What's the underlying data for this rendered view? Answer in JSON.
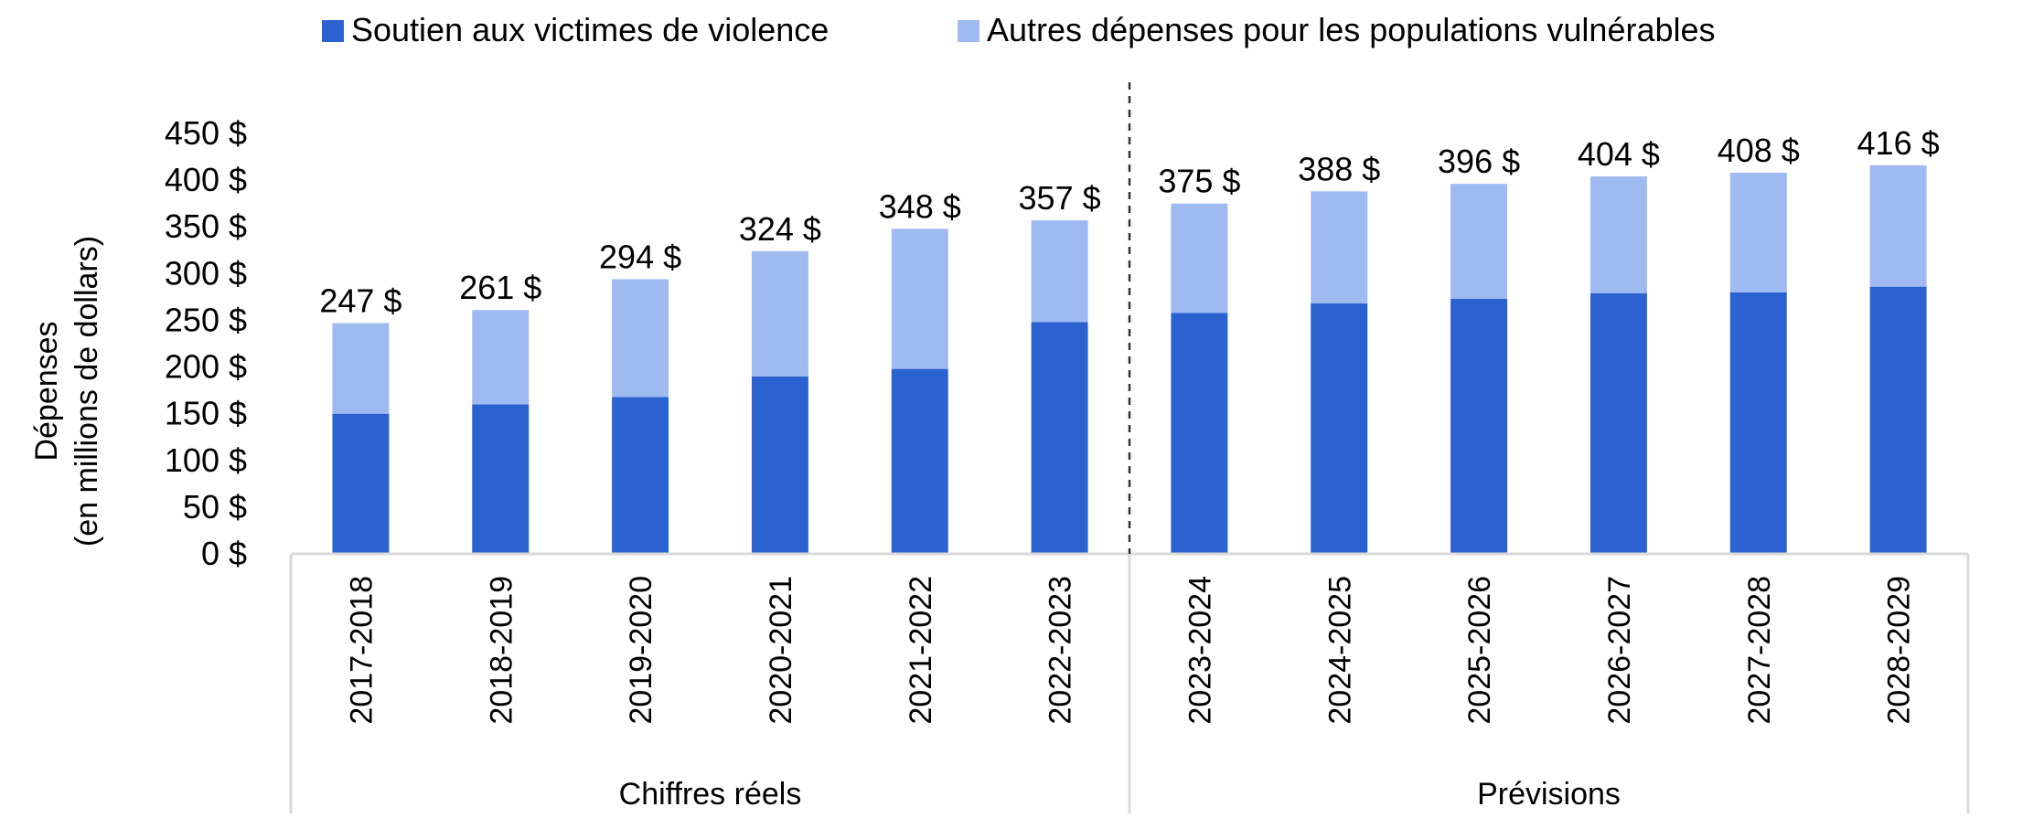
{
  "chart_data": {
    "type": "bar",
    "stacked": true,
    "categories": [
      "2017-2018",
      "2018-2019",
      "2019-2020",
      "2020-2021",
      "2021-2022",
      "2022-2023",
      "2023-2024",
      "2024-2025",
      "2025-2026",
      "2026-2027",
      "2027-2028",
      "2028-2029"
    ],
    "series": [
      {
        "name": "Soutien aux victimes de violence",
        "color": "#2c62d0",
        "values": [
          150,
          160,
          168,
          190,
          198,
          248,
          258,
          268,
          273,
          279,
          280,
          286
        ]
      },
      {
        "name": "Autres dépenses pour les populations vulnérables",
        "color": "#9fbaf0",
        "values": [
          97,
          101,
          126,
          134,
          150,
          109,
          117,
          120,
          123,
          125,
          128,
          130
        ]
      }
    ],
    "totals": [
      "247 $",
      "261 $",
      "294 $",
      "324 $",
      "348 $",
      "357 $",
      "375 $",
      "388 $",
      "396 $",
      "404 $",
      "408 $",
      "416 $"
    ],
    "ylabel_lines": [
      "Dépenses",
      "(en millions de dollars)"
    ],
    "xlabel": "",
    "ylim": [
      0,
      450
    ],
    "y_ticks": [
      0,
      50,
      100,
      150,
      200,
      250,
      300,
      350,
      400,
      450
    ],
    "y_tick_suffix": " $",
    "groups": [
      {
        "label": "Chiffres réels",
        "count": 6
      },
      {
        "label": "Prévisions",
        "count": 6
      }
    ],
    "legend_position": "top",
    "grid": false
  }
}
